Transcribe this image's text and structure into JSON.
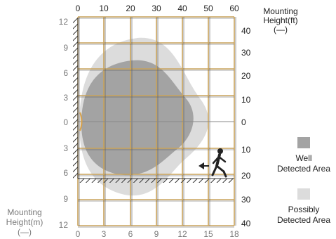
{
  "diagram": {
    "top_axis": {
      "ticks": [
        "0",
        "10",
        "20",
        "30",
        "40",
        "50",
        "60"
      ]
    },
    "bottom_axis": {
      "ticks": [
        "0",
        "3",
        "6",
        "9",
        "12",
        "15",
        "18"
      ]
    },
    "left_axis": {
      "ticks": [
        "12",
        "9",
        "6",
        "3",
        "0",
        "3",
        "6",
        "9",
        "12"
      ]
    },
    "right_axis": {
      "ticks": [
        "40",
        "30",
        "20",
        "10",
        "0",
        "10",
        "20",
        "30",
        "40"
      ]
    },
    "right_title": {
      "line1": "Mounting",
      "line2": "Height(ft)",
      "line3": "(—)"
    },
    "left_title": {
      "line1": "Mounting",
      "line2": "Height(m)",
      "line3": "(—)"
    },
    "legend": {
      "well": {
        "line1": "Well",
        "line2": "Detected Area"
      },
      "possibly": {
        "line1": "Possibly",
        "line2": "Detected Area"
      }
    },
    "colors": {
      "grid_line": "#c8a25a",
      "well_area": "#a3a3a3",
      "possibly_area": "#dcdcdc",
      "metric_marker": "#d9a24a"
    },
    "icons": {
      "person": "walking-person-icon",
      "arrow": "left-arrow-icon"
    }
  }
}
